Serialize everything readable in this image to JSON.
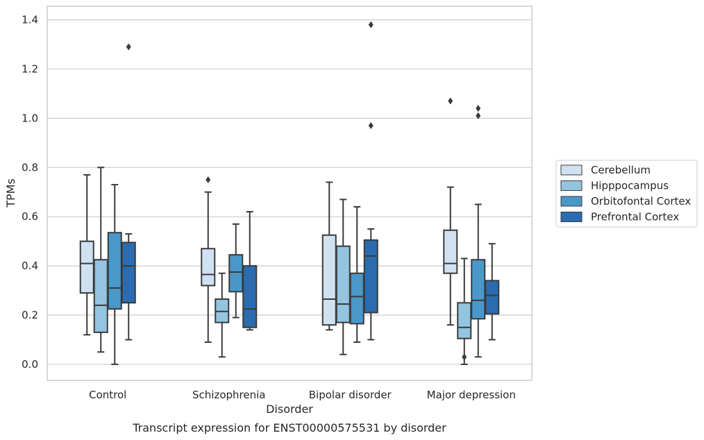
{
  "chart_data": {
    "type": "box",
    "caption": "Transcript expression for ENST00000575531 by disorder",
    "xlabel": "Disorder",
    "ylabel": "TPMs",
    "ylim": [
      -0.065,
      1.455
    ],
    "yticks": [
      0.0,
      0.2,
      0.4,
      0.6,
      0.8,
      1.0,
      1.2,
      1.4
    ],
    "ytick_labels": [
      "0.0",
      "0.2",
      "0.4",
      "0.6",
      "0.8",
      "1.0",
      "1.2",
      "1.4"
    ],
    "grid": true,
    "legend_position": "right",
    "categories": [
      "Control",
      "Schizophrenia",
      "Bipolar disorder",
      "Major depression"
    ],
    "series": [
      {
        "name": "Cerebellum",
        "color": "#d0e1f2",
        "boxes": [
          {
            "whisker_low": 0.12,
            "q1": 0.29,
            "median": 0.41,
            "q3": 0.5,
            "whisker_high": 0.77,
            "outliers": []
          },
          {
            "whisker_low": 0.09,
            "q1": 0.32,
            "median": 0.365,
            "q3": 0.47,
            "whisker_high": 0.7,
            "outliers": [
              0.75
            ]
          },
          {
            "whisker_low": 0.14,
            "q1": 0.16,
            "median": 0.265,
            "q3": 0.525,
            "whisker_high": 0.74,
            "outliers": []
          },
          {
            "whisker_low": 0.16,
            "q1": 0.37,
            "median": 0.41,
            "q3": 0.545,
            "whisker_high": 0.72,
            "outliers": [
              1.07
            ]
          }
        ]
      },
      {
        "name": "Hipppocampus",
        "color": "#94c4df",
        "boxes": [
          {
            "whisker_low": 0.05,
            "q1": 0.13,
            "median": 0.24,
            "q3": 0.425,
            "whisker_high": 0.8,
            "outliers": []
          },
          {
            "whisker_low": 0.03,
            "q1": 0.17,
            "median": 0.215,
            "q3": 0.265,
            "whisker_high": 0.37,
            "outliers": []
          },
          {
            "whisker_low": 0.04,
            "q1": 0.17,
            "median": 0.245,
            "q3": 0.48,
            "whisker_high": 0.67,
            "outliers": []
          },
          {
            "whisker_low": 0.0,
            "q1": 0.105,
            "median": 0.15,
            "q3": 0.25,
            "whisker_high": 0.43,
            "outliers": [
              0.03
            ]
          }
        ]
      },
      {
        "name": "Orbitofontal Cortex",
        "color": "#4a98c9",
        "boxes": [
          {
            "whisker_low": 0.0,
            "q1": 0.225,
            "median": 0.31,
            "q3": 0.535,
            "whisker_high": 0.73,
            "outliers": []
          },
          {
            "whisker_low": 0.19,
            "q1": 0.295,
            "median": 0.375,
            "q3": 0.445,
            "whisker_high": 0.57,
            "outliers": []
          },
          {
            "whisker_low": 0.09,
            "q1": 0.165,
            "median": 0.275,
            "q3": 0.37,
            "whisker_high": 0.64,
            "outliers": []
          },
          {
            "whisker_low": 0.03,
            "q1": 0.185,
            "median": 0.26,
            "q3": 0.425,
            "whisker_high": 0.65,
            "outliers": [
              1.01,
              1.04
            ]
          }
        ]
      },
      {
        "name": "Prefrontal Cortex",
        "color": "#2b6cb0",
        "boxes": [
          {
            "whisker_low": 0.1,
            "q1": 0.25,
            "median": 0.4,
            "q3": 0.495,
            "whisker_high": 0.53,
            "outliers": [
              1.29
            ]
          },
          {
            "whisker_low": 0.14,
            "q1": 0.15,
            "median": 0.225,
            "q3": 0.4,
            "whisker_high": 0.62,
            "outliers": []
          },
          {
            "whisker_low": 0.1,
            "q1": 0.21,
            "median": 0.44,
            "q3": 0.505,
            "whisker_high": 0.55,
            "outliers": [
              0.97,
              1.38
            ]
          },
          {
            "whisker_low": 0.1,
            "q1": 0.205,
            "median": 0.28,
            "q3": 0.34,
            "whisker_high": 0.49,
            "outliers": []
          }
        ]
      }
    ]
  }
}
